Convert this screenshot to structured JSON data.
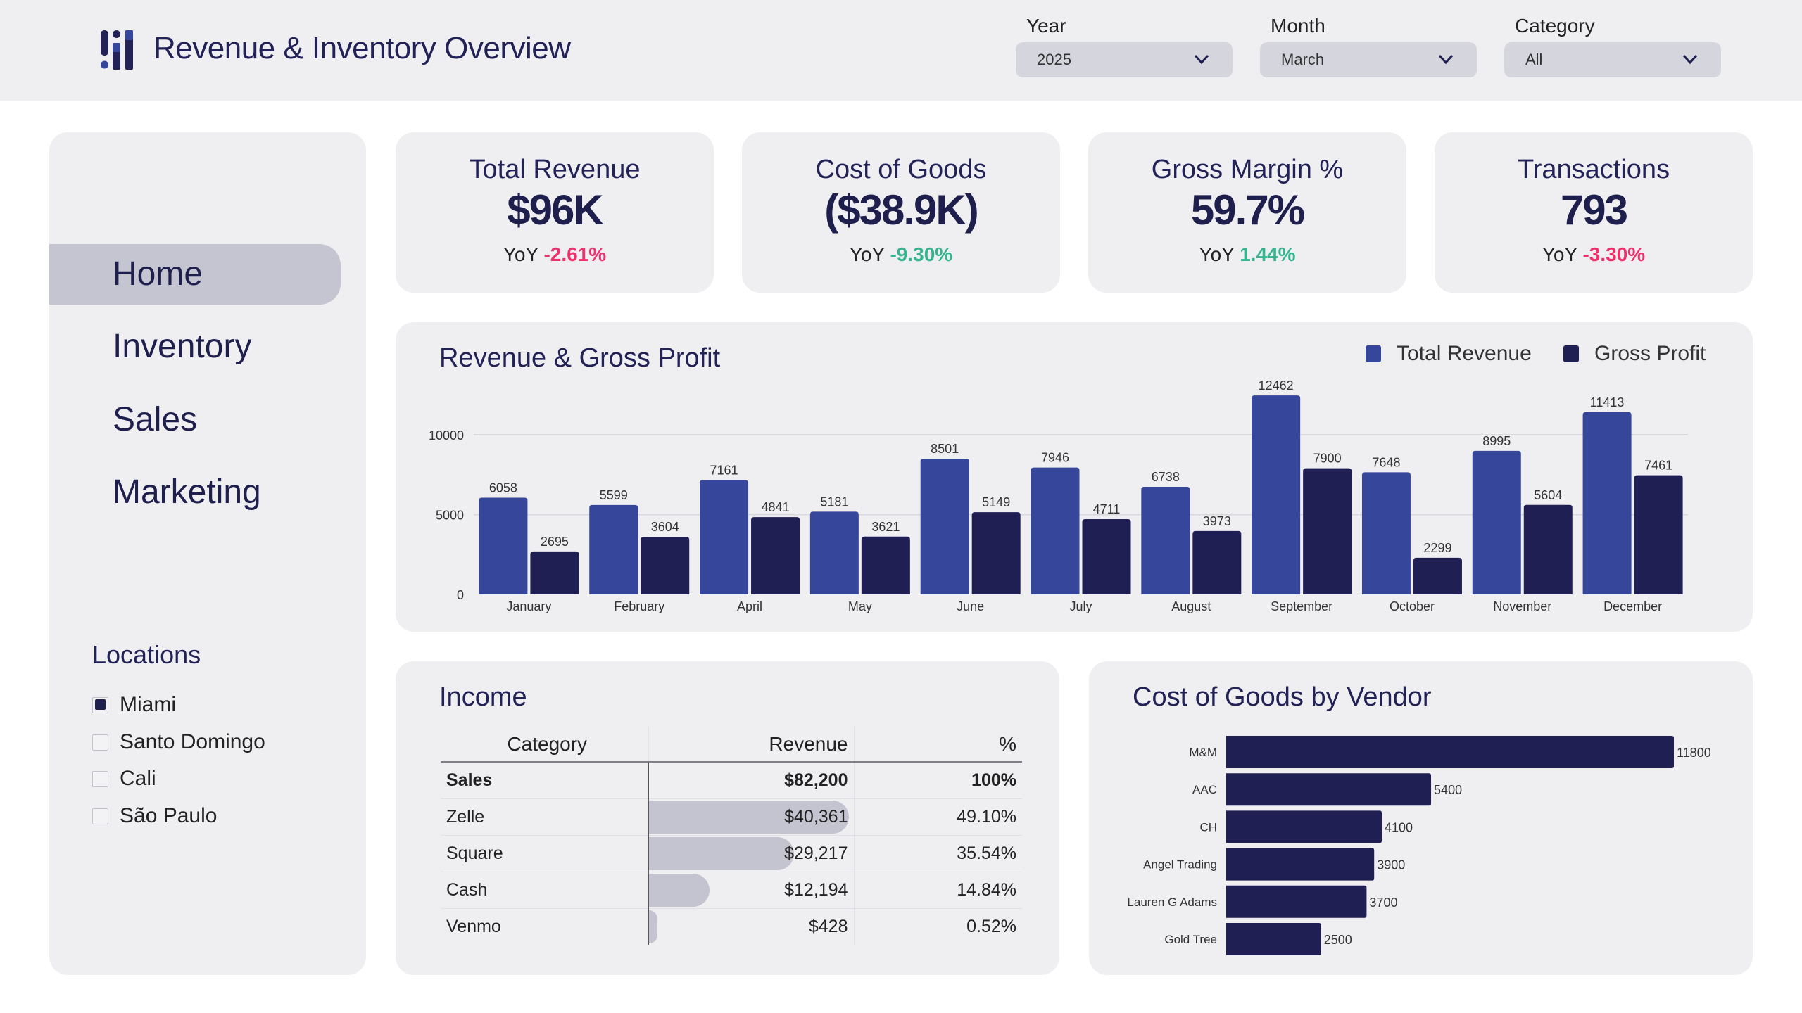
{
  "header": {
    "title": "Revenue & Inventory Overview",
    "logo_icon": "bar-chart-logo-icon",
    "filters": [
      {
        "label": "Year",
        "value": "2025"
      },
      {
        "label": "Month",
        "value": "March"
      },
      {
        "label": "Category",
        "value": "All"
      }
    ]
  },
  "sidebar": {
    "nav": [
      {
        "label": "Home",
        "active": true
      },
      {
        "label": "Inventory",
        "active": false
      },
      {
        "label": "Sales",
        "active": false
      },
      {
        "label": "Marketing",
        "active": false
      }
    ],
    "locations_title": "Locations",
    "locations": [
      {
        "label": "Miami",
        "checked": true
      },
      {
        "label": "Santo Domingo",
        "checked": false
      },
      {
        "label": "Cali",
        "checked": false
      },
      {
        "label": "São Paulo",
        "checked": false
      }
    ]
  },
  "kpis": [
    {
      "title": "Total Revenue",
      "value": "$96K",
      "yoy_label": "YoY",
      "delta": "-2.61%",
      "delta_color": "#f0306c"
    },
    {
      "title": "Cost of Goods",
      "value": "($38.9K)",
      "yoy_label": "YoY",
      "delta": "-9.30%",
      "delta_color": "#35b58f"
    },
    {
      "title": "Gross Margin %",
      "value": "59.7%",
      "yoy_label": "YoY",
      "delta": "1.44%",
      "delta_color": "#35b58f"
    },
    {
      "title": "Transactions",
      "value": "793",
      "yoy_label": "YoY",
      "delta": "-3.30%",
      "delta_color": "#f0306c"
    }
  ],
  "colors": {
    "revenue": "#36479b",
    "profit": "#201f53",
    "vendor_bar": "#201f53",
    "income_bar": "#c4c4d1"
  },
  "chart_data": [
    {
      "type": "bar",
      "title": "Revenue & Gross Profit",
      "categories": [
        "January",
        "February",
        "April",
        "May",
        "June",
        "July",
        "August",
        "September",
        "October",
        "November",
        "December"
      ],
      "series": [
        {
          "name": "Total Revenue",
          "values": [
            6058,
            5599,
            7161,
            5181,
            8501,
            7946,
            6738,
            12462,
            7648,
            8995,
            11413
          ]
        },
        {
          "name": "Gross Profit",
          "values": [
            2695,
            3604,
            4841,
            3621,
            5149,
            4711,
            3973,
            7900,
            2299,
            5604,
            7461
          ]
        }
      ],
      "yticks": [
        0,
        5000,
        10000
      ],
      "ylim": [
        0,
        10000
      ],
      "xlabel": "",
      "ylabel": "",
      "grid": true,
      "legend": "top-right",
      "data_labels": true
    },
    {
      "type": "bar",
      "orientation": "horizontal",
      "title": "Cost of Goods by Vendor",
      "categories": [
        "M&M",
        "AAC",
        "CH",
        "Angel Trading",
        "Lauren G Adams",
        "Gold Tree"
      ],
      "values": [
        11800,
        5400,
        4100,
        3900,
        3700,
        2500
      ],
      "grid": false,
      "data_labels": true
    }
  ],
  "income": {
    "title": "Income",
    "columns": [
      "Category",
      "Revenue",
      "%"
    ],
    "rows": [
      {
        "category": "Sales",
        "revenue": "$82,200",
        "pct": "100%",
        "bold": true,
        "share": null
      },
      {
        "category": "Zelle",
        "revenue": "$40,361",
        "pct": "49.10%",
        "bold": false,
        "share": 0.491
      },
      {
        "category": "Square",
        "revenue": "$29,217",
        "pct": "35.54%",
        "bold": false,
        "share": 0.3554
      },
      {
        "category": "Cash",
        "revenue": "$12,194",
        "pct": "14.84%",
        "bold": false,
        "share": 0.1484
      },
      {
        "category": "Venmo",
        "revenue": "$428",
        "pct": "0.52%",
        "bold": false,
        "share": 0.0052
      }
    ]
  }
}
